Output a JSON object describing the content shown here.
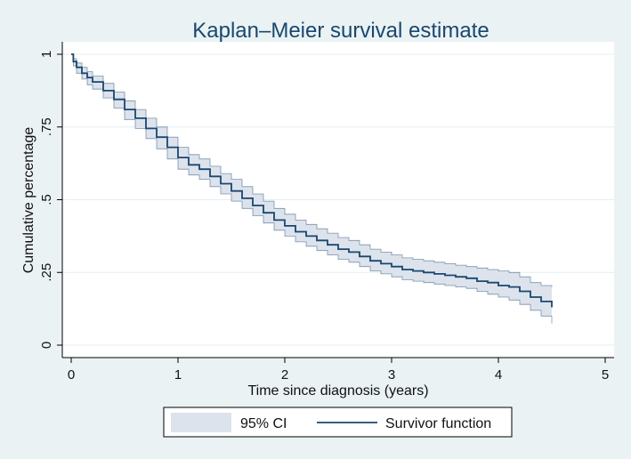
{
  "chart_data": {
    "type": "line",
    "title": "Kaplan–Meier survival estimate",
    "xlabel": "Time since diagnosis (years)",
    "ylabel": "Cumulative percentage",
    "xlim": [
      0,
      5
    ],
    "ylim": [
      0,
      1
    ],
    "x_ticks": [
      0,
      1,
      2,
      3,
      4,
      5
    ],
    "x_tick_labels": [
      "0",
      "1",
      "2",
      "3",
      "4",
      "5"
    ],
    "y_ticks": [
      0,
      0.25,
      0.5,
      0.75,
      1
    ],
    "y_tick_labels": [
      "0",
      ".25",
      ".5",
      ".75",
      "1"
    ],
    "grid": true,
    "legend_position": "bottom",
    "legend": [
      "95% CI",
      "Survivor function"
    ],
    "colors": {
      "background": "#eaf2f3",
      "plot_area": "#ffffff",
      "survivor_line": "#1a476f",
      "ci_fill": "#dde3ec",
      "ci_border": "#1a476f",
      "title": "#1a476f"
    },
    "series": [
      {
        "name": "Survivor function",
        "x": [
          0,
          0.02,
          0.05,
          0.1,
          0.15,
          0.2,
          0.3,
          0.4,
          0.5,
          0.6,
          0.7,
          0.8,
          0.9,
          1.0,
          1.1,
          1.2,
          1.3,
          1.4,
          1.5,
          1.6,
          1.7,
          1.8,
          1.9,
          2.0,
          2.1,
          2.2,
          2.3,
          2.4,
          2.5,
          2.6,
          2.7,
          2.8,
          2.9,
          3.0,
          3.1,
          3.2,
          3.3,
          3.4,
          3.5,
          3.6,
          3.7,
          3.8,
          3.9,
          4.0,
          4.1,
          4.2,
          4.3,
          4.4,
          4.5
        ],
        "values": [
          1.0,
          0.975,
          0.955,
          0.935,
          0.92,
          0.905,
          0.875,
          0.845,
          0.81,
          0.78,
          0.745,
          0.715,
          0.68,
          0.645,
          0.62,
          0.605,
          0.58,
          0.555,
          0.53,
          0.505,
          0.48,
          0.455,
          0.43,
          0.41,
          0.39,
          0.375,
          0.36,
          0.345,
          0.33,
          0.32,
          0.305,
          0.29,
          0.28,
          0.27,
          0.26,
          0.255,
          0.25,
          0.245,
          0.24,
          0.235,
          0.23,
          0.22,
          0.215,
          0.205,
          0.2,
          0.185,
          0.165,
          0.15,
          0.13
        ]
      },
      {
        "name": "95% CI upper",
        "x": [
          0,
          0.02,
          0.05,
          0.1,
          0.15,
          0.2,
          0.3,
          0.4,
          0.5,
          0.6,
          0.7,
          0.8,
          0.9,
          1.0,
          1.1,
          1.2,
          1.3,
          1.4,
          1.5,
          1.6,
          1.7,
          1.8,
          1.9,
          2.0,
          2.1,
          2.2,
          2.3,
          2.4,
          2.5,
          2.6,
          2.7,
          2.8,
          2.9,
          3.0,
          3.1,
          3.2,
          3.3,
          3.4,
          3.5,
          3.6,
          3.7,
          3.8,
          3.9,
          4.0,
          4.1,
          4.2,
          4.3,
          4.4,
          4.5
        ],
        "values": [
          1.0,
          0.985,
          0.97,
          0.955,
          0.94,
          0.925,
          0.9,
          0.87,
          0.84,
          0.81,
          0.78,
          0.75,
          0.715,
          0.68,
          0.655,
          0.64,
          0.615,
          0.59,
          0.57,
          0.545,
          0.52,
          0.495,
          0.47,
          0.45,
          0.43,
          0.415,
          0.4,
          0.385,
          0.37,
          0.36,
          0.345,
          0.33,
          0.32,
          0.31,
          0.3,
          0.295,
          0.29,
          0.285,
          0.28,
          0.275,
          0.27,
          0.265,
          0.26,
          0.255,
          0.25,
          0.235,
          0.215,
          0.205,
          0.2
        ]
      },
      {
        "name": "95% CI lower",
        "x": [
          0,
          0.02,
          0.05,
          0.1,
          0.15,
          0.2,
          0.3,
          0.4,
          0.5,
          0.6,
          0.7,
          0.8,
          0.9,
          1.0,
          1.1,
          1.2,
          1.3,
          1.4,
          1.5,
          1.6,
          1.7,
          1.8,
          1.9,
          2.0,
          2.1,
          2.2,
          2.3,
          2.4,
          2.5,
          2.6,
          2.7,
          2.8,
          2.9,
          3.0,
          3.1,
          3.2,
          3.3,
          3.4,
          3.5,
          3.6,
          3.7,
          3.8,
          3.9,
          4.0,
          4.1,
          4.2,
          4.3,
          4.4,
          4.5
        ],
        "values": [
          1.0,
          0.96,
          0.935,
          0.915,
          0.895,
          0.88,
          0.85,
          0.815,
          0.775,
          0.745,
          0.71,
          0.675,
          0.64,
          0.605,
          0.585,
          0.57,
          0.545,
          0.52,
          0.495,
          0.47,
          0.445,
          0.42,
          0.395,
          0.375,
          0.355,
          0.34,
          0.325,
          0.31,
          0.295,
          0.285,
          0.27,
          0.255,
          0.245,
          0.235,
          0.225,
          0.22,
          0.215,
          0.21,
          0.205,
          0.2,
          0.195,
          0.185,
          0.175,
          0.165,
          0.155,
          0.14,
          0.12,
          0.1,
          0.075
        ]
      }
    ]
  }
}
